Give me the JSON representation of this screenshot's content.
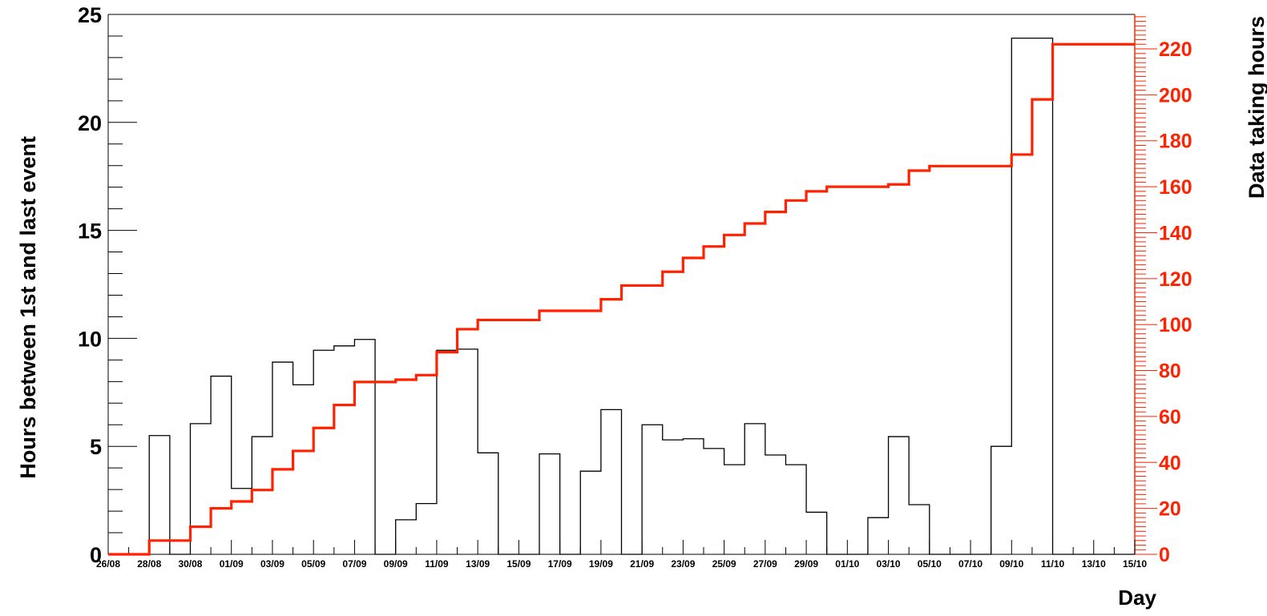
{
  "chart_data": {
    "type": "histogram",
    "xlabel": "Day",
    "x_categories": [
      "26/08",
      "27/08",
      "28/08",
      "29/08",
      "30/08",
      "31/08",
      "01/09",
      "02/09",
      "03/09",
      "04/09",
      "05/09",
      "06/09",
      "07/09",
      "08/09",
      "09/09",
      "10/09",
      "11/09",
      "12/09",
      "13/09",
      "14/09",
      "15/09",
      "16/09",
      "17/09",
      "18/09",
      "19/09",
      "20/09",
      "21/09",
      "22/09",
      "23/09",
      "24/09",
      "25/09",
      "26/09",
      "27/09",
      "28/09",
      "29/09",
      "30/09",
      "01/10",
      "02/10",
      "03/10",
      "04/10",
      "05/10",
      "06/10",
      "07/10",
      "08/10",
      "09/10",
      "10/10",
      "11/10",
      "12/10",
      "13/10",
      "14/10",
      "15/10"
    ],
    "x_tick_labels": [
      "26/08",
      "28/08",
      "30/08",
      "01/09",
      "03/09",
      "05/09",
      "07/09",
      "09/09",
      "11/09",
      "13/09",
      "15/09",
      "17/09",
      "19/09",
      "21/09",
      "23/09",
      "25/09",
      "27/09",
      "29/09",
      "01/10",
      "03/10",
      "05/10",
      "07/10",
      "09/10",
      "11/10",
      "13/10",
      "15/10"
    ],
    "series": [
      {
        "name": "Hours between 1st and last event",
        "axis": "left",
        "style": "step-histogram",
        "color": "#000000",
        "values": [
          0,
          0,
          5.5,
          0,
          6.05,
          8.25,
          3.05,
          5.45,
          8.9,
          7.85,
          9.45,
          9.65,
          9.95,
          0,
          1.6,
          2.35,
          9.45,
          9.5,
          4.7,
          0,
          0,
          4.65,
          0,
          3.85,
          6.7,
          0,
          6.0,
          5.3,
          5.35,
          4.9,
          4.15,
          6.05,
          4.6,
          4.15,
          1.95,
          0,
          0,
          1.7,
          5.45,
          2.3,
          0,
          0,
          0,
          5.0,
          23.9,
          23.9,
          0,
          0,
          0,
          0
        ]
      },
      {
        "name": "Data taking hours",
        "axis": "right",
        "style": "cumulative-step",
        "color": "#ff2200",
        "values": [
          0,
          0,
          6,
          6,
          12,
          20,
          23,
          28,
          37,
          45,
          55,
          65,
          75,
          75,
          76,
          78,
          88,
          98,
          102,
          102,
          102,
          106,
          106,
          106,
          111,
          117,
          117,
          123,
          129,
          134,
          139,
          144,
          149,
          154,
          158,
          160,
          160,
          160,
          161,
          167,
          169,
          169,
          169,
          169,
          174,
          198,
          222,
          222,
          222,
          222
        ]
      }
    ],
    "left_axis": {
      "label": "Hours between 1st and last event",
      "ylim": [
        0,
        25
      ],
      "ticks": [
        "0",
        "5",
        "10",
        "15",
        "20",
        "25"
      ]
    },
    "right_axis": {
      "label": "Data taking hours",
      "ylim": [
        0,
        235
      ],
      "ticks": [
        "0",
        "20",
        "40",
        "60",
        "80",
        "100",
        "120",
        "140",
        "160",
        "180",
        "200",
        "220"
      ],
      "color": "#ff2200"
    },
    "grid": false,
    "legend": "none"
  }
}
